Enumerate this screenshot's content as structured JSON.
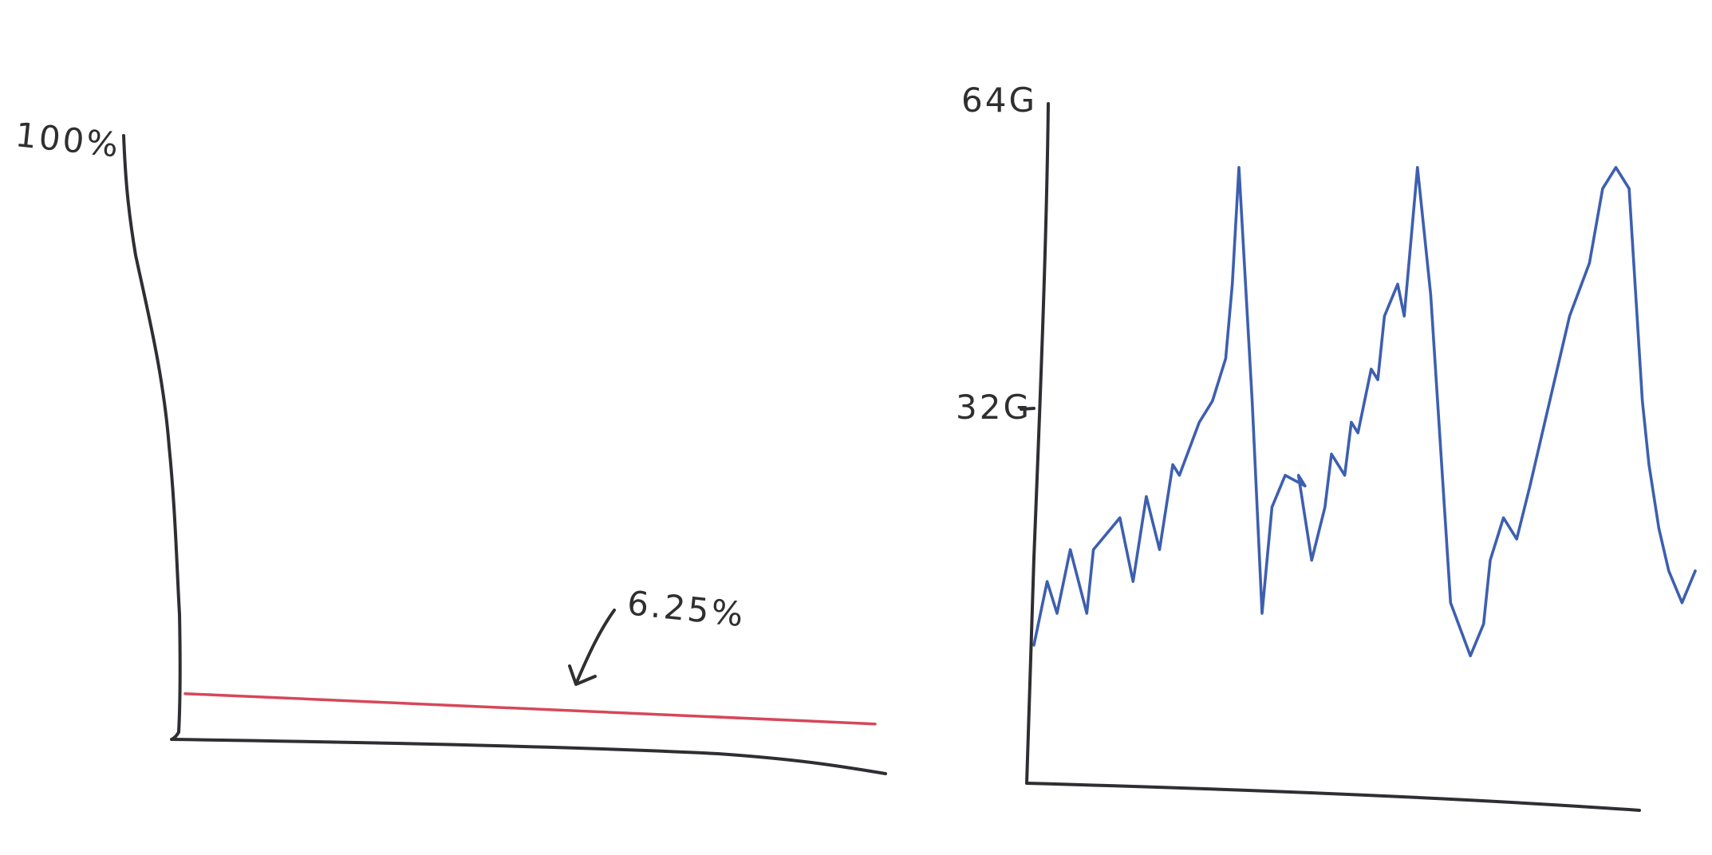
{
  "chart_data": [
    {
      "type": "line",
      "title": "",
      "xlabel": "",
      "ylabel": "",
      "ylim": [
        0,
        100
      ],
      "y_tick_labels": [
        "100%"
      ],
      "annotation": "6.25%",
      "line_color": "#d6475a",
      "series": [
        {
          "x": [
            0,
            0.05,
            1
          ],
          "values": [
            6.25,
            6.25,
            6.25
          ]
        }
      ]
    },
    {
      "type": "line",
      "title": "",
      "xlabel": "",
      "ylabel": "",
      "ylim": [
        0,
        64
      ],
      "y_tick_labels": [
        "64G",
        "32G"
      ],
      "line_color": "#3d5fb0",
      "series": [
        {
          "x": [
            0,
            0.02,
            0.035,
            0.055,
            0.08,
            0.09,
            0.13,
            0.15,
            0.17,
            0.19,
            0.2,
            0.21,
            0.22,
            0.25,
            0.27,
            0.29,
            0.3,
            0.31,
            0.33,
            0.345,
            0.36,
            0.38,
            0.41,
            0.4,
            0.42,
            0.44,
            0.45,
            0.47,
            0.48,
            0.49,
            0.51,
            0.52,
            0.53,
            0.55,
            0.56,
            0.58,
            0.6,
            0.63,
            0.66,
            0.68,
            0.69,
            0.71,
            0.73,
            0.75,
            0.78,
            0.81,
            0.84,
            0.86,
            0.88,
            0.9,
            0.92,
            0.93,
            0.945,
            0.96,
            0.98,
            1.0
          ],
          "values": [
            13,
            19,
            16,
            22,
            16,
            22,
            25,
            19,
            27,
            22,
            26,
            30,
            29,
            34,
            36,
            40,
            47,
            58,
            36,
            16,
            26,
            29,
            28,
            29,
            21,
            26,
            31,
            29,
            34,
            33,
            39,
            38,
            44,
            47,
            44,
            58,
            46,
            17,
            12,
            15,
            21,
            25,
            23,
            28,
            36,
            44,
            49,
            56,
            58,
            56,
            36,
            30,
            24,
            20,
            17,
            20
          ]
        }
      ]
    }
  ]
}
